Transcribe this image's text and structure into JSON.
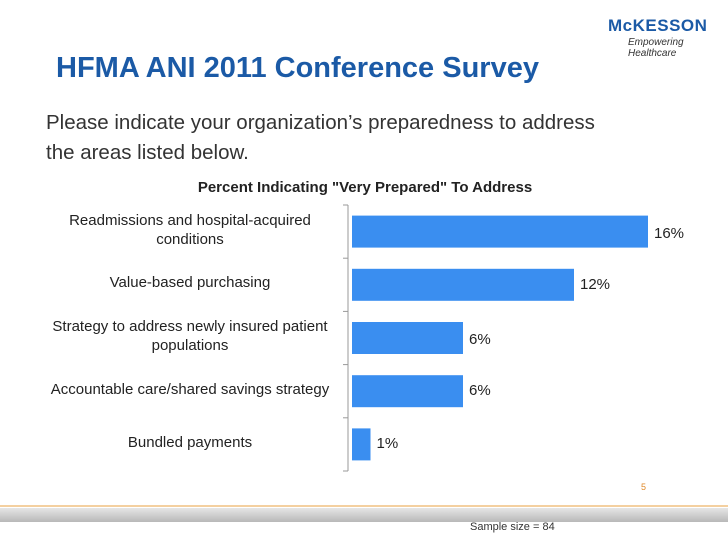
{
  "header": {
    "logo": "McKESSON",
    "tagline": "Empowering Healthcare",
    "title": "HFMA ANI 2011 Conference Survey",
    "subtitle": "Please indicate your organization’s preparedness to address the areas listed below."
  },
  "chart_data": {
    "type": "bar",
    "orientation": "horizontal",
    "title": "Percent Indicating \"Very Prepared\" To Address",
    "categories": [
      "Readmissions and hospital-acquired conditions",
      "Value-based purchasing",
      "Strategy to address newly insured patient populations",
      "Accountable care/shared savings strategy",
      "Bundled payments"
    ],
    "values": [
      16,
      12,
      6,
      6,
      1
    ],
    "value_labels": [
      "16%",
      "12%",
      "6%",
      "6%",
      "1%"
    ],
    "color": "#3a8ef0"
  },
  "footer": {
    "page": "5",
    "note": "Sample size = 84"
  }
}
